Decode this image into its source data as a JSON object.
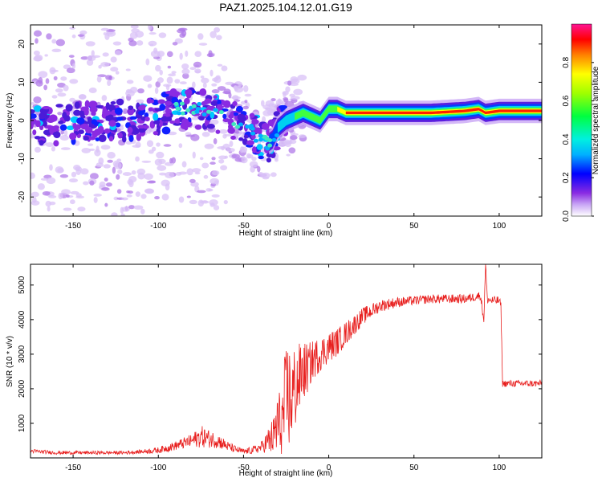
{
  "figure": {
    "title": "PAZ1.2025.104.12.01.G19",
    "colors": {
      "snr_line": "#e8201f",
      "axis": "#000000",
      "background": "#ffffff"
    }
  },
  "chart_data": [
    {
      "type": "heatmap",
      "name": "spectrogram",
      "xlabel": "Height of straight line (km)",
      "ylabel": "Frequency (Hz)",
      "xlim": [
        -175,
        125
      ],
      "ylim": [
        -25,
        25
      ],
      "x_ticks": [
        -150,
        -100,
        -50,
        0,
        50,
        100
      ],
      "y_ticks": [
        -20,
        -10,
        0,
        10,
        20
      ],
      "grid": false,
      "colorbar": {
        "label": "Normalized spectral amplitude",
        "range": [
          0.0,
          1.0
        ],
        "ticks": [
          0.0,
          0.2,
          0.4,
          0.6,
          0.8
        ],
        "tick_labels": [
          "0.0",
          "0.2",
          "0.4",
          "0.6",
          "0.8"
        ],
        "colormap": "rainbow (white -> violet -> blue -> cyan -> green -> yellow -> red -> pink)"
      },
      "ridge": {
        "x": [
          -175,
          -160,
          -140,
          -120,
          -100,
          -90,
          -80,
          -70,
          -60,
          -50,
          -45,
          -40,
          -36,
          -33,
          -30,
          -25,
          -20,
          -15,
          -10,
          -5,
          0,
          5,
          10,
          20,
          40,
          60,
          80,
          88,
          92,
          100,
          110,
          125
        ],
        "frequency": [
          -1,
          -1,
          0,
          0,
          1,
          3,
          3,
          3,
          1,
          -1,
          -3,
          -5,
          -6,
          -5,
          -2,
          0,
          1,
          2,
          1,
          0,
          3,
          3,
          2,
          2,
          2,
          2,
          2.5,
          3,
          2,
          2.5,
          2.5,
          2.5
        ]
      }
    },
    {
      "type": "line",
      "name": "snr",
      "xlabel": "Height of straight line (km)",
      "ylabel": "SNR (10 * v/v)",
      "xlim": [
        -175,
        125
      ],
      "ylim": [
        0,
        5600
      ],
      "x_ticks": [
        -150,
        -100,
        -50,
        0,
        50,
        100
      ],
      "y_ticks": [
        1000,
        2000,
        3000,
        4000,
        5000
      ],
      "grid": false,
      "series": [
        {
          "color": "#e8201f",
          "x": [
            -175,
            -160,
            -150,
            -140,
            -130,
            -120,
            -110,
            -100,
            -90,
            -80,
            -75,
            -70,
            -65,
            -60,
            -55,
            -50,
            -45,
            -40,
            -38,
            -35,
            -32,
            -30,
            -28,
            -26,
            -24,
            -22,
            -20,
            -18,
            -15,
            -12,
            -10,
            -5,
            0,
            5,
            10,
            20,
            30,
            40,
            50,
            60,
            70,
            80,
            85,
            89,
            91,
            92,
            93,
            95,
            100,
            101,
            102,
            110,
            120,
            125
          ],
          "y": [
            200,
            150,
            150,
            150,
            150,
            150,
            180,
            220,
            350,
            500,
            620,
            550,
            500,
            350,
            250,
            180,
            220,
            300,
            380,
            500,
            650,
            1000,
            900,
            1400,
            1800,
            1700,
            2000,
            2200,
            2500,
            2600,
            2800,
            3000,
            3200,
            3350,
            3600,
            4100,
            4400,
            4500,
            4550,
            4600,
            4600,
            4600,
            4650,
            4700,
            4000,
            5600,
            4600,
            4550,
            4550,
            4400,
            2150,
            2150,
            2150,
            2150
          ],
          "noise": [
            60,
            50,
            50,
            50,
            50,
            50,
            60,
            90,
            130,
            200,
            320,
            260,
            220,
            150,
            110,
            80,
            110,
            150,
            220,
            450,
            600,
            1300,
            800,
            1500,
            1700,
            1400,
            1300,
            1100,
            900,
            700,
            600,
            500,
            450,
            400,
            350,
            250,
            180,
            150,
            130,
            130,
            130,
            130,
            130,
            130,
            150,
            100,
            130,
            130,
            130,
            120,
            100,
            100,
            100,
            100
          ]
        }
      ]
    }
  ]
}
